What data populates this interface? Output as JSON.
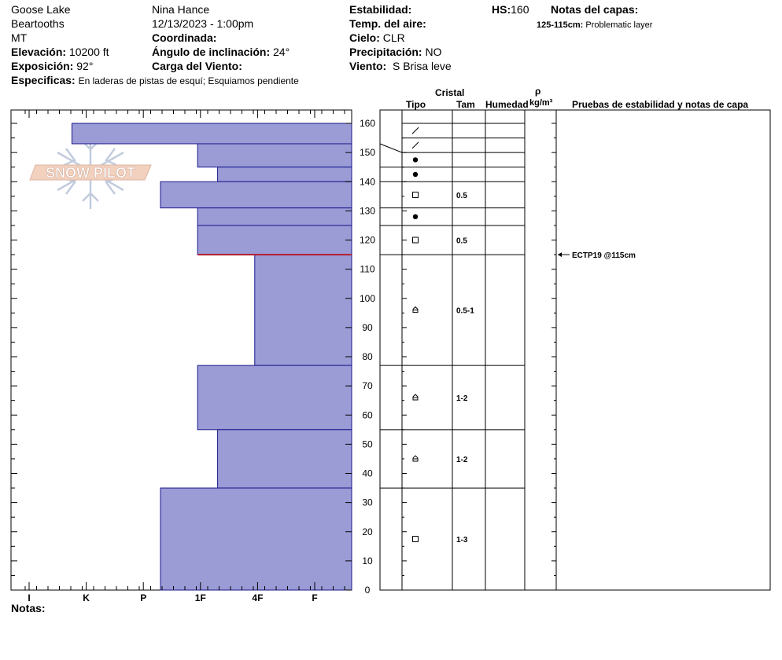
{
  "header": {
    "location": "Goose Lake",
    "range": "Beartooths",
    "state": "MT",
    "elevation_label": "Elevación:",
    "elevation_value": "10200 ft",
    "aspect_label": "Exposición:",
    "aspect_value": "92°",
    "specifics_label": "Especificas:",
    "specifics_value": "En laderas de pistas de esquí; Esquiamos pendiente",
    "observer": "Nina Hance",
    "datetime": "12/13/2023 - 1:00pm",
    "coord_label": "Coordinada:",
    "slope_label": "Ángulo de inclinación:",
    "slope_value": "24°",
    "windload_label": "Carga del Viento:",
    "stability_label": "Estabilidad:",
    "airtemp_label": "Temp. del aire:",
    "sky_label": "Cielo:",
    "sky_value": "CLR",
    "precip_label": "Precipitación:",
    "precip_value": "NO",
    "wind_label": "Viento:",
    "wind_value": "S Brisa leve",
    "hs_label": "HS:",
    "hs_value": "160",
    "layer_notes_label": "Notas del capas:",
    "layer_note_range": "125-115cm:",
    "layer_note_text": "Problematic layer"
  },
  "logo": {
    "text": "SNOW PILOT"
  },
  "columns": {
    "crystal_group": "Cristal",
    "type": "Tipo",
    "size": "Tam",
    "moisture": "Humedad",
    "density_symbol": "ρ",
    "density_unit": "kg/m³",
    "tests": "Pruebas de estabilidad y notas de capa"
  },
  "notes_label": "Notas:",
  "colors": {
    "layer_fill": "#9b9bd6",
    "layer_stroke": "#1a1a8c",
    "test_line": "#b01e2e"
  },
  "chart_data": {
    "type": "snow_profile",
    "hardness_ticks": [
      "I",
      "K",
      "P",
      "1F",
      "4F",
      "F"
    ],
    "depth_ticks": [
      0,
      10,
      20,
      30,
      40,
      50,
      60,
      70,
      80,
      90,
      100,
      110,
      120,
      130,
      140,
      150,
      160
    ],
    "ylim": [
      0,
      160
    ],
    "layers": [
      {
        "top": 160,
        "bottom": 153,
        "hardness": 0.75,
        "type": "decomposing",
        "size": ""
      },
      {
        "top": 153,
        "bottom": 145,
        "hardness": 2.95,
        "type": "decomposing",
        "size": ""
      },
      {
        "top": 145,
        "bottom": 140,
        "hardness": 3.3,
        "type": "rounded",
        "size": ""
      },
      {
        "top": 140,
        "bottom": 131,
        "hardness": 2.3,
        "type": "rounded",
        "size": ""
      },
      {
        "top": 131,
        "bottom": 125,
        "hardness": 2.95,
        "type": "faceted",
        "size": "0.5"
      },
      {
        "top": 125,
        "bottom": 115,
        "hardness": 2.95,
        "type": "rounded",
        "size": ""
      },
      {
        "top": 115,
        "bottom": 77,
        "hardness": 3.95,
        "type": "faceted",
        "size": "0.5"
      },
      {
        "top": 77,
        "bottom": 55,
        "hardness": 2.95,
        "type": "depth_hoar",
        "size": "0.5-1"
      },
      {
        "top": 55,
        "bottom": 35,
        "hardness": 3.3,
        "type": "depth_hoar",
        "size": "1-2"
      },
      {
        "top": 35,
        "bottom": 0,
        "hardness": 2.3,
        "type": "depth_hoar",
        "size": "1-2"
      }
    ],
    "crystal_rows": [
      {
        "type": "decomposing",
        "size": "",
        "top": 160,
        "bottom": 155
      },
      {
        "type": "decomposing",
        "size": "",
        "top": 155,
        "bottom": 150
      },
      {
        "type": "rounded",
        "size": "",
        "top": 150,
        "bottom": 145
      },
      {
        "type": "rounded",
        "size": "",
        "top": 145,
        "bottom": 140
      },
      {
        "type": "faceted",
        "size": "0.5",
        "top": 140,
        "bottom": 131
      },
      {
        "type": "rounded",
        "size": "",
        "top": 131,
        "bottom": 125
      },
      {
        "type": "faceted",
        "size": "0.5",
        "top": 125,
        "bottom": 115
      },
      {
        "type": "depth_hoar",
        "size": "0.5-1",
        "top": 115,
        "bottom": 77
      },
      {
        "type": "depth_hoar",
        "size": "1-2",
        "top": 77,
        "bottom": 55
      },
      {
        "type": "depth_hoar",
        "size": "1-2",
        "top": 55,
        "bottom": 35
      },
      {
        "type": "faceted",
        "size": "1-3",
        "top": 35,
        "bottom": 0
      }
    ],
    "tests": [
      {
        "depth": 115,
        "label": "ECTP19 @115cm"
      }
    ]
  }
}
